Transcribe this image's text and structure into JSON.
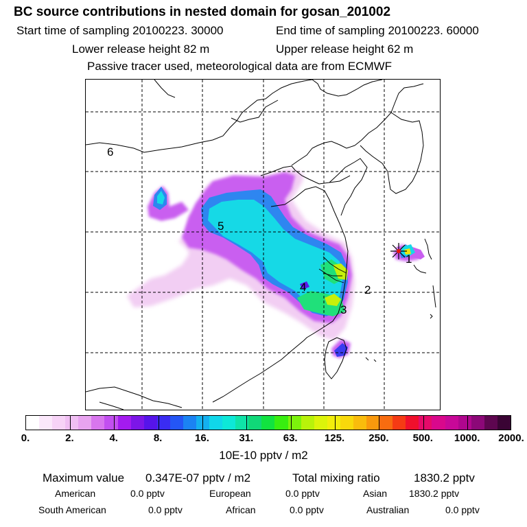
{
  "header": {
    "title": "BC  source contributions in nested domain for gosan_201002",
    "start_label": "Start time of sampling 20100223. 30000",
    "end_label": "End time of sampling 20100223. 60000",
    "lower_height": "Lower release height   82 m",
    "upper_height": "Upper release height   62 m",
    "note": "Passive tracer used, meteorological data are from ECMWF"
  },
  "map": {
    "regions": [
      "1",
      "2",
      "3",
      "4",
      "5",
      "6"
    ],
    "receptor_marker": "star-crosshair"
  },
  "colorbar": {
    "colors": [
      "#ffffff",
      "#fbe8fb",
      "#f7d3f7",
      "#f0bff3",
      "#e8a4f0",
      "#d876ee",
      "#c24ff0",
      "#a41bf0",
      "#7c16e8",
      "#5614ea",
      "#3a2cf2",
      "#2456f5",
      "#1b83f3",
      "#14b0f0",
      "#10d7ea",
      "#0de8d8",
      "#0fe3a8",
      "#10d878",
      "#11e340",
      "#38ee10",
      "#7cf30c",
      "#b8f20a",
      "#dcf40a",
      "#f2ee0b",
      "#f8d90b",
      "#f9bc0c",
      "#f9990d",
      "#f86c10",
      "#f53b14",
      "#f0102c",
      "#e60a6a",
      "#d9088c",
      "#c80898",
      "#b0068e",
      "#8c0878",
      "#5e0650",
      "#3a0434"
    ],
    "ticks": [
      "0.",
      "2.",
      "4.",
      "8.",
      "16.",
      "31.",
      "63.",
      "125.",
      "250.",
      "500.",
      "1000.",
      "2000."
    ],
    "units": "10E-10 pptv / m2"
  },
  "stats": {
    "max_label": "Maximum value",
    "max_value": "0.347E-07 pptv / m2",
    "total_label": "Total mixing ratio",
    "total_value": "1830.2 pptv",
    "american_label": "American",
    "american_value": "0.0 pptv",
    "european_label": "European",
    "european_value": "0.0 pptv",
    "asian_label": "Asian",
    "asian_value": "1830.2 pptv",
    "south_american_label": "South American",
    "south_american_value": "0.0 pptv",
    "african_label": "African",
    "african_value": "0.0 pptv",
    "australian_label": "Australian",
    "australian_value": "0.0 pptv"
  }
}
